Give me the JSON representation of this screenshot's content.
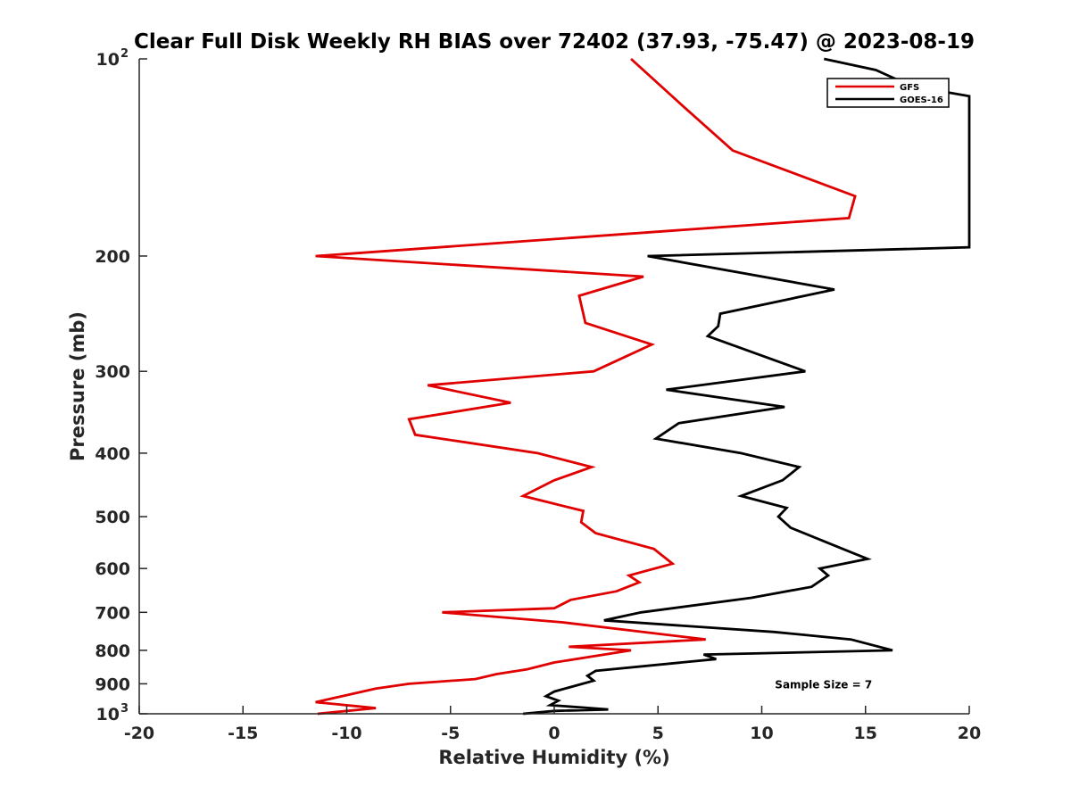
{
  "chart_data": {
    "type": "line",
    "title": "Clear Full Disk Weekly RH BIAS over 72402 (37.93, -75.47) @ 2023-08-19",
    "xlabel": "Relative Humidity (%)",
    "ylabel": "Pressure (mb)",
    "xlim": [
      -20,
      20
    ],
    "ylim": [
      100,
      1000
    ],
    "yscale": "log",
    "y_reversed": true,
    "x_ticks": [
      "-20",
      "-15",
      "-10",
      "-5",
      "0",
      "5",
      "10",
      "15",
      "20"
    ],
    "y_ticks": [
      {
        "value": 100,
        "label": "10",
        "sup": "2"
      },
      {
        "value": 200,
        "label": "200",
        "sup": ""
      },
      {
        "value": 300,
        "label": "300",
        "sup": ""
      },
      {
        "value": 400,
        "label": "400",
        "sup": ""
      },
      {
        "value": 500,
        "label": "500",
        "sup": ""
      },
      {
        "value": 600,
        "label": "600",
        "sup": ""
      },
      {
        "value": 700,
        "label": "700",
        "sup": ""
      },
      {
        "value": 800,
        "label": "800",
        "sup": ""
      },
      {
        "value": 900,
        "label": "900",
        "sup": ""
      },
      {
        "value": 1000,
        "label": "10",
        "sup": "3"
      }
    ],
    "legend_position": "top-right",
    "series": [
      {
        "name": "GFS",
        "color": "#e00000",
        "points": [
          [
            3.7,
            100
          ],
          [
            6.2,
            118
          ],
          [
            8.6,
            138
          ],
          [
            14.5,
            162
          ],
          [
            14.2,
            175
          ],
          [
            -11.5,
            200
          ],
          [
            4.3,
            215
          ],
          [
            1.2,
            230
          ],
          [
            1.5,
            253
          ],
          [
            4.7,
            273
          ],
          [
            1.9,
            300
          ],
          [
            -6.1,
            315
          ],
          [
            -2.1,
            335
          ],
          [
            -7.0,
            355
          ],
          [
            -6.7,
            375
          ],
          [
            -0.8,
            400
          ],
          [
            1.8,
            420
          ],
          [
            0.0,
            440
          ],
          [
            -1.5,
            465
          ],
          [
            1.4,
            490
          ],
          [
            1.3,
            510
          ],
          [
            2.0,
            530
          ],
          [
            4.8,
            560
          ],
          [
            5.7,
            590
          ],
          [
            3.6,
            615
          ],
          [
            4.1,
            630
          ],
          [
            3.0,
            650
          ],
          [
            0.8,
            670
          ],
          [
            0.0,
            690
          ],
          [
            -5.4,
            700
          ],
          [
            0.4,
            725
          ],
          [
            7.3,
            770
          ],
          [
            0.7,
            790
          ],
          [
            3.7,
            800
          ],
          [
            0.0,
            835
          ],
          [
            -1.3,
            855
          ],
          [
            -2.8,
            870
          ],
          [
            -3.8,
            885
          ],
          [
            -7.0,
            900
          ],
          [
            -8.6,
            915
          ],
          [
            -11.5,
            960
          ],
          [
            -8.6,
            980
          ],
          [
            -11.4,
            1000
          ]
        ]
      },
      {
        "name": "GOES-16",
        "color": "#000000",
        "points": [
          [
            13.0,
            100
          ],
          [
            15.5,
            104
          ],
          [
            17.2,
            110
          ],
          [
            20.0,
            114
          ],
          [
            20.0,
            194
          ],
          [
            4.5,
            200
          ],
          [
            13.5,
            225
          ],
          [
            8.0,
            245
          ],
          [
            7.9,
            256
          ],
          [
            7.4,
            265
          ],
          [
            12.1,
            300
          ],
          [
            5.4,
            320
          ],
          [
            11.1,
            340
          ],
          [
            6.0,
            360
          ],
          [
            4.9,
            380
          ],
          [
            9.0,
            400
          ],
          [
            11.8,
            420
          ],
          [
            11.0,
            440
          ],
          [
            9.0,
            465
          ],
          [
            11.2,
            485
          ],
          [
            10.8,
            500
          ],
          [
            11.4,
            520
          ],
          [
            13.9,
            560
          ],
          [
            15.1,
            580
          ],
          [
            12.8,
            600
          ],
          [
            13.2,
            615
          ],
          [
            12.4,
            640
          ],
          [
            9.5,
            665
          ],
          [
            4.2,
            700
          ],
          [
            2.4,
            720
          ],
          [
            10.6,
            750
          ],
          [
            14.3,
            770
          ],
          [
            16.3,
            800
          ],
          [
            7.2,
            812
          ],
          [
            7.8,
            825
          ],
          [
            2.0,
            860
          ],
          [
            1.6,
            875
          ],
          [
            1.9,
            890
          ],
          [
            0.0,
            925
          ],
          [
            -0.4,
            940
          ],
          [
            0.2,
            955
          ],
          [
            -0.2,
            970
          ],
          [
            2.6,
            985
          ],
          [
            0.0,
            990
          ],
          [
            -1.5,
            1000
          ]
        ]
      }
    ],
    "annotations": [
      {
        "text": "Sample Size = 7",
        "x": 15,
        "y": 900
      }
    ]
  }
}
